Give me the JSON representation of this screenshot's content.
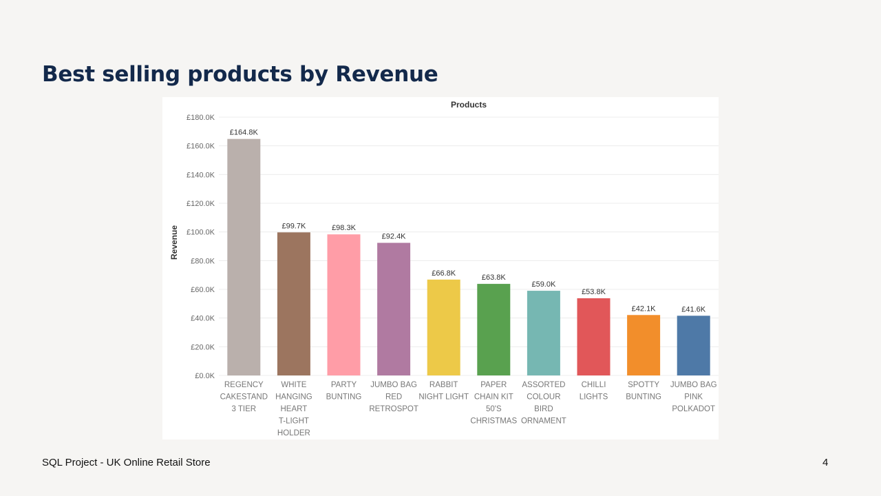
{
  "slide": {
    "title": "Best selling products by Revenue",
    "footer": "SQL Project - UK Online Retail Store",
    "page_number": "4"
  },
  "chart_data": {
    "type": "bar",
    "title": "Products",
    "xlabel": "",
    "ylabel": "Revenue",
    "ylim": [
      0,
      180000
    ],
    "yticks": [
      {
        "value": 0,
        "label": "£0.0K"
      },
      {
        "value": 20000,
        "label": "£20.0K"
      },
      {
        "value": 40000,
        "label": "£40.0K"
      },
      {
        "value": 60000,
        "label": "£60.0K"
      },
      {
        "value": 80000,
        "label": "£80.0K"
      },
      {
        "value": 100000,
        "label": "£100.0K"
      },
      {
        "value": 120000,
        "label": "£120.0K"
      },
      {
        "value": 140000,
        "label": "£140.0K"
      },
      {
        "value": 160000,
        "label": "£160.0K"
      },
      {
        "value": 180000,
        "label": "£180.0K"
      }
    ],
    "grid": true,
    "categories": [
      [
        "REGENCY",
        "CAKESTAND",
        "3 TIER"
      ],
      [
        "WHITE",
        "HANGING",
        "HEART",
        "T-LIGHT",
        "HOLDER"
      ],
      [
        "PARTY",
        "BUNTING"
      ],
      [
        "JUMBO BAG",
        "RED",
        "RETROSPOT"
      ],
      [
        "RABBIT",
        "NIGHT LIGHT"
      ],
      [
        "PAPER",
        "CHAIN KIT",
        "50'S",
        "CHRISTMAS"
      ],
      [
        "ASSORTED",
        "COLOUR",
        "BIRD",
        "ORNAMENT"
      ],
      [
        "CHILLI",
        "LIGHTS"
      ],
      [
        "SPOTTY",
        "BUNTING"
      ],
      [
        "JUMBO BAG",
        "PINK",
        "POLKADOT"
      ]
    ],
    "values": [
      164800,
      99700,
      98300,
      92400,
      66800,
      63800,
      59000,
      53800,
      42100,
      41600
    ],
    "data_labels": [
      "£164.8K",
      "£99.7K",
      "£98.3K",
      "£92.4K",
      "£66.8K",
      "£63.8K",
      "£59.0K",
      "£53.8K",
      "£42.1K",
      "£41.6K"
    ],
    "colors": [
      "#bab0ac",
      "#9c755f",
      "#ff9da7",
      "#b07aa1",
      "#edc948",
      "#59a14f",
      "#76b7b2",
      "#e15759",
      "#f28e2b",
      "#4e79a7"
    ]
  }
}
